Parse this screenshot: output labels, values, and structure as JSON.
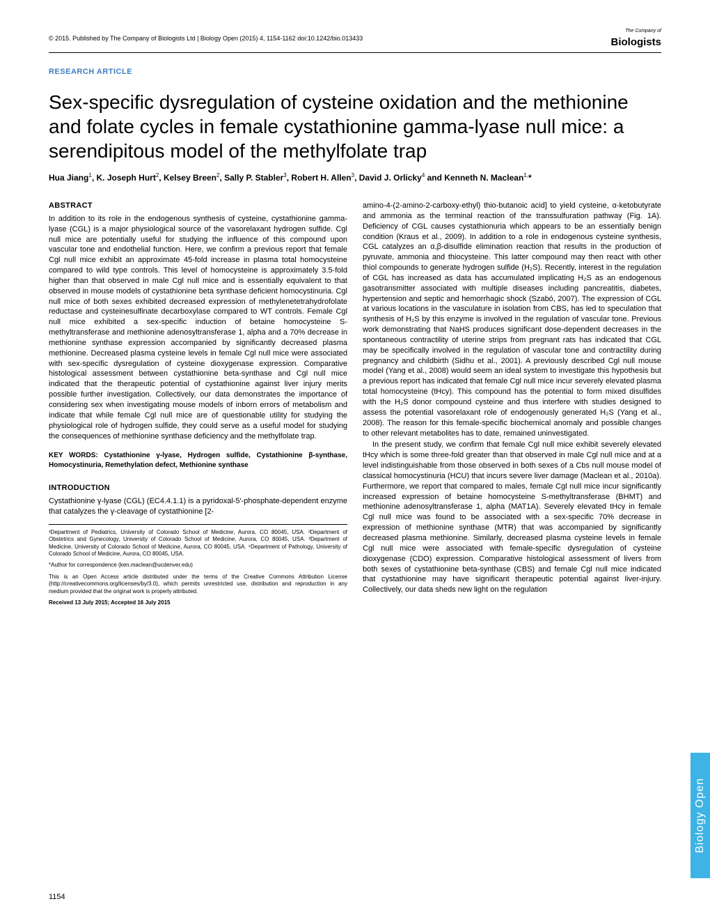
{
  "header": {
    "copyright": "© 2015. Published by The Company of Biologists Ltd | Biology Open (2015) 4, 1154-1162 doi:10.1242/bio.013433",
    "logo_line1": "The Company of",
    "logo_line2": "Biologists"
  },
  "article_type": "RESEARCH ARTICLE",
  "title": "Sex-specific dysregulation of cysteine oxidation and the methionine and folate cycles in female cystathionine gamma-lyase null mice: a serendipitous model of the methylfolate trap",
  "authors_html": "Hua Jiang<sup>1</sup>, K. Joseph Hurt<sup>2</sup>, Kelsey Breen<sup>2</sup>, Sally P. Stabler<sup>3</sup>, Robert H. Allen<sup>3</sup>, David J. Orlicky<sup>4</sup> and Kenneth N. Maclean<sup>1,</sup>*",
  "abstract_heading": "ABSTRACT",
  "abstract": "In addition to its role in the endogenous synthesis of cysteine, cystathionine gamma-lyase (CGL) is a major physiological source of the vasorelaxant hydrogen sulfide. Cgl null mice are potentially useful for studying the influence of this compound upon vascular tone and endothelial function. Here, we confirm a previous report that female Cgl null mice exhibit an approximate 45-fold increase in plasma total homocysteine compared to wild type controls. This level of homocysteine is approximately 3.5-fold higher than that observed in male Cgl null mice and is essentially equivalent to that observed in mouse models of cystathionine beta synthase deficient homocystinuria. Cgl null mice of both sexes exhibited decreased expression of methylenetetrahydrofolate reductase and cysteinesulfinate decarboxylase compared to WT controls. Female Cgl null mice exhibited a sex-specific induction of betaine homocysteine S-methyltransferase and methionine adenosyltransferase 1, alpha and a 70% decrease in methionine synthase expression accompanied by significantly decreased plasma methionine. Decreased plasma cysteine levels in female Cgl null mice were associated with sex-specific dysregulation of cysteine dioxygenase expression. Comparative histological assessment between cystathionine beta-synthase and Cgl null mice indicated that the therapeutic potential of cystathionine against liver injury merits possible further investigation. Collectively, our data demonstrates the importance of considering sex when investigating mouse models of inborn errors of metabolism and indicate that while female Cgl null mice are of questionable utility for studying the physiological role of hydrogen sulfide, they could serve as a useful model for studying the consequences of methionine synthase deficiency and the methylfolate trap.",
  "keywords": "KEY WORDS: Cystathionine γ-lyase, Hydrogen sulfide, Cystathionine β-synthase, Homocystinuria, Remethylation defect, Methionine synthase",
  "intro_heading": "INTRODUCTION",
  "intro_left": "Cystathionine γ-lyase (CGL) (EC4.4.1.1) is a pyridoxal-5′-phosphate-dependent enzyme that catalyzes the γ-cleavage of cystathionine [2-",
  "body_right": "amino-4-(2-amino-2-carboxy-ethyl) thio-butanoic acid] to yield cysteine, α-ketobutyrate and ammonia as the terminal reaction of the transsulfuration pathway (Fig. 1A). Deficiency of CGL causes cystathionuria which appears to be an essentially benign condition (Kraus et al., 2009). In addition to a role in endogenous cysteine synthesis, CGL catalyzes an α,β-disulfide elimination reaction that results in the production of pyruvate, ammonia and thiocysteine. This latter compound may then react with other thiol compounds to generate hydrogen sulfide (H₂S). Recently, interest in the regulation of CGL has increased as data has accumulated implicating H₂S as an endogenous gasotransmitter associated with multiple diseases including pancreatitis, diabetes, hypertension and septic and hemorrhagic shock (Szabó, 2007). The expression of CGL at various locations in the vasculature in isolation from CBS, has led to speculation that synthesis of H₂S by this enzyme is involved in the regulation of vascular tone. Previous work demonstrating that NaHS produces significant dose-dependent decreases in the spontaneous contractility of uterine strips from pregnant rats has indicated that CGL may be specifically involved in the regulation of vascular tone and contractility during pregnancy and childbirth (Sidhu et al., 2001). A previously described Cgl null mouse model (Yang et al., 2008) would seem an ideal system to investigate this hypothesis but a previous report has indicated that female Cgl null mice incur severely elevated plasma total homocysteine (tHcy). This compound has the potential to form mixed disulfides with the H₂S donor compound cysteine and thus interfere with studies designed to assess the potential vasorelaxant role of endogenously generated H₂S (Yang et al., 2008). The reason for this female-specific biochemical anomaly and possible changes to other relevant metabolites has to date, remained uninvestigated.",
  "body_right_p2": "In the present study, we confirm that female Cgl null mice exhibit severely elevated tHcy which is some three-fold greater than that observed in male Cgl null mice and at a level indistinguishable from those observed in both sexes of a Cbs null mouse model of classical homocystinuria (HCU) that incurs severe liver damage (Maclean et al., 2010a). Furthermore, we report that compared to males, female Cgl null mice incur significantly increased expression of betaine homocysteine S-methyltransferase (BHMT) and methionine adenosyltransferase 1, alpha (MAT1A). Severely elevated tHcy in female Cgl null mice was found to be associated with a sex-specific 70% decrease in expression of methionine synthase (MTR) that was accompanied by significantly decreased plasma methionine. Similarly, decreased plasma cysteine levels in female Cgl null mice were associated with female-specific dysregulation of cysteine dioxygenase (CDO) expression. Comparative histological assessment of livers from both sexes of cystathionine beta-synthase (CBS) and female Cgl null mice indicated that cystathionine may have significant therapeutic potential against liver-injury. Collectively, our data sheds new light on the regulation",
  "footnotes": {
    "affiliations": "¹Department of Pediatrics, University of Colorado School of Medicine, Aurora, CO 80045, USA. ²Department of Obstetrics and Gynecology, University of Colorado School of Medicine, Aurora, CO 80045, USA. ³Department of Medicine, University of Colorado School of Medicine, Aurora, CO 80045, USA. ⁴Department of Pathology, University of Colorado School of Medicine, Aurora, CO 80045, USA.",
    "correspondence": "*Author for correspondence (ken.maclean@ucdenver.edu)",
    "license": "This is an Open Access article distributed under the terms of the Creative Commons Attribution License (http://creativecommons.org/licenses/by/3.0), which permits unrestricted use, distribution and reproduction in any medium provided that the original work is properly attributed.",
    "received": "Received 13 July 2015; Accepted 16 July 2015"
  },
  "page_number": "1154",
  "side_tab": "Biology Open",
  "colors": {
    "accent": "#3a7ebf",
    "tab": "#3db3e6"
  }
}
